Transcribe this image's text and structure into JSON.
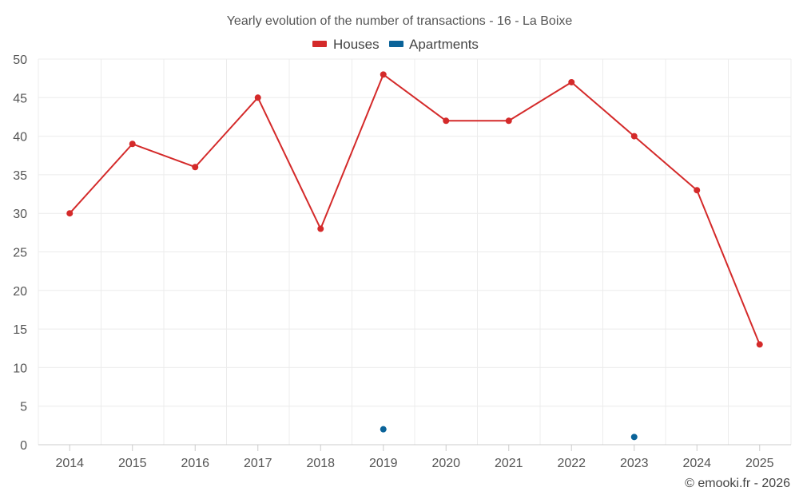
{
  "chart_data": {
    "type": "line",
    "title": "Yearly evolution of the number of transactions - 16 - La Boixe",
    "categories": [
      "2014",
      "2015",
      "2016",
      "2017",
      "2018",
      "2019",
      "2020",
      "2021",
      "2022",
      "2023",
      "2024",
      "2025"
    ],
    "ylim": [
      0,
      50
    ],
    "yticks": [
      0,
      5,
      10,
      15,
      20,
      25,
      30,
      35,
      40,
      45,
      50
    ],
    "grid": true,
    "legend_position": "top-center",
    "series": [
      {
        "name": "Houses",
        "color": "#d42a2a",
        "line": true,
        "values": [
          30,
          39,
          36,
          45,
          28,
          48,
          42,
          42,
          47,
          40,
          33,
          13
        ]
      },
      {
        "name": "Apartments",
        "color": "#0a6399",
        "line": false,
        "values": [
          null,
          null,
          null,
          null,
          null,
          2,
          null,
          null,
          null,
          1,
          null,
          null
        ]
      }
    ]
  },
  "credit": "© emooki.fr - 2026"
}
